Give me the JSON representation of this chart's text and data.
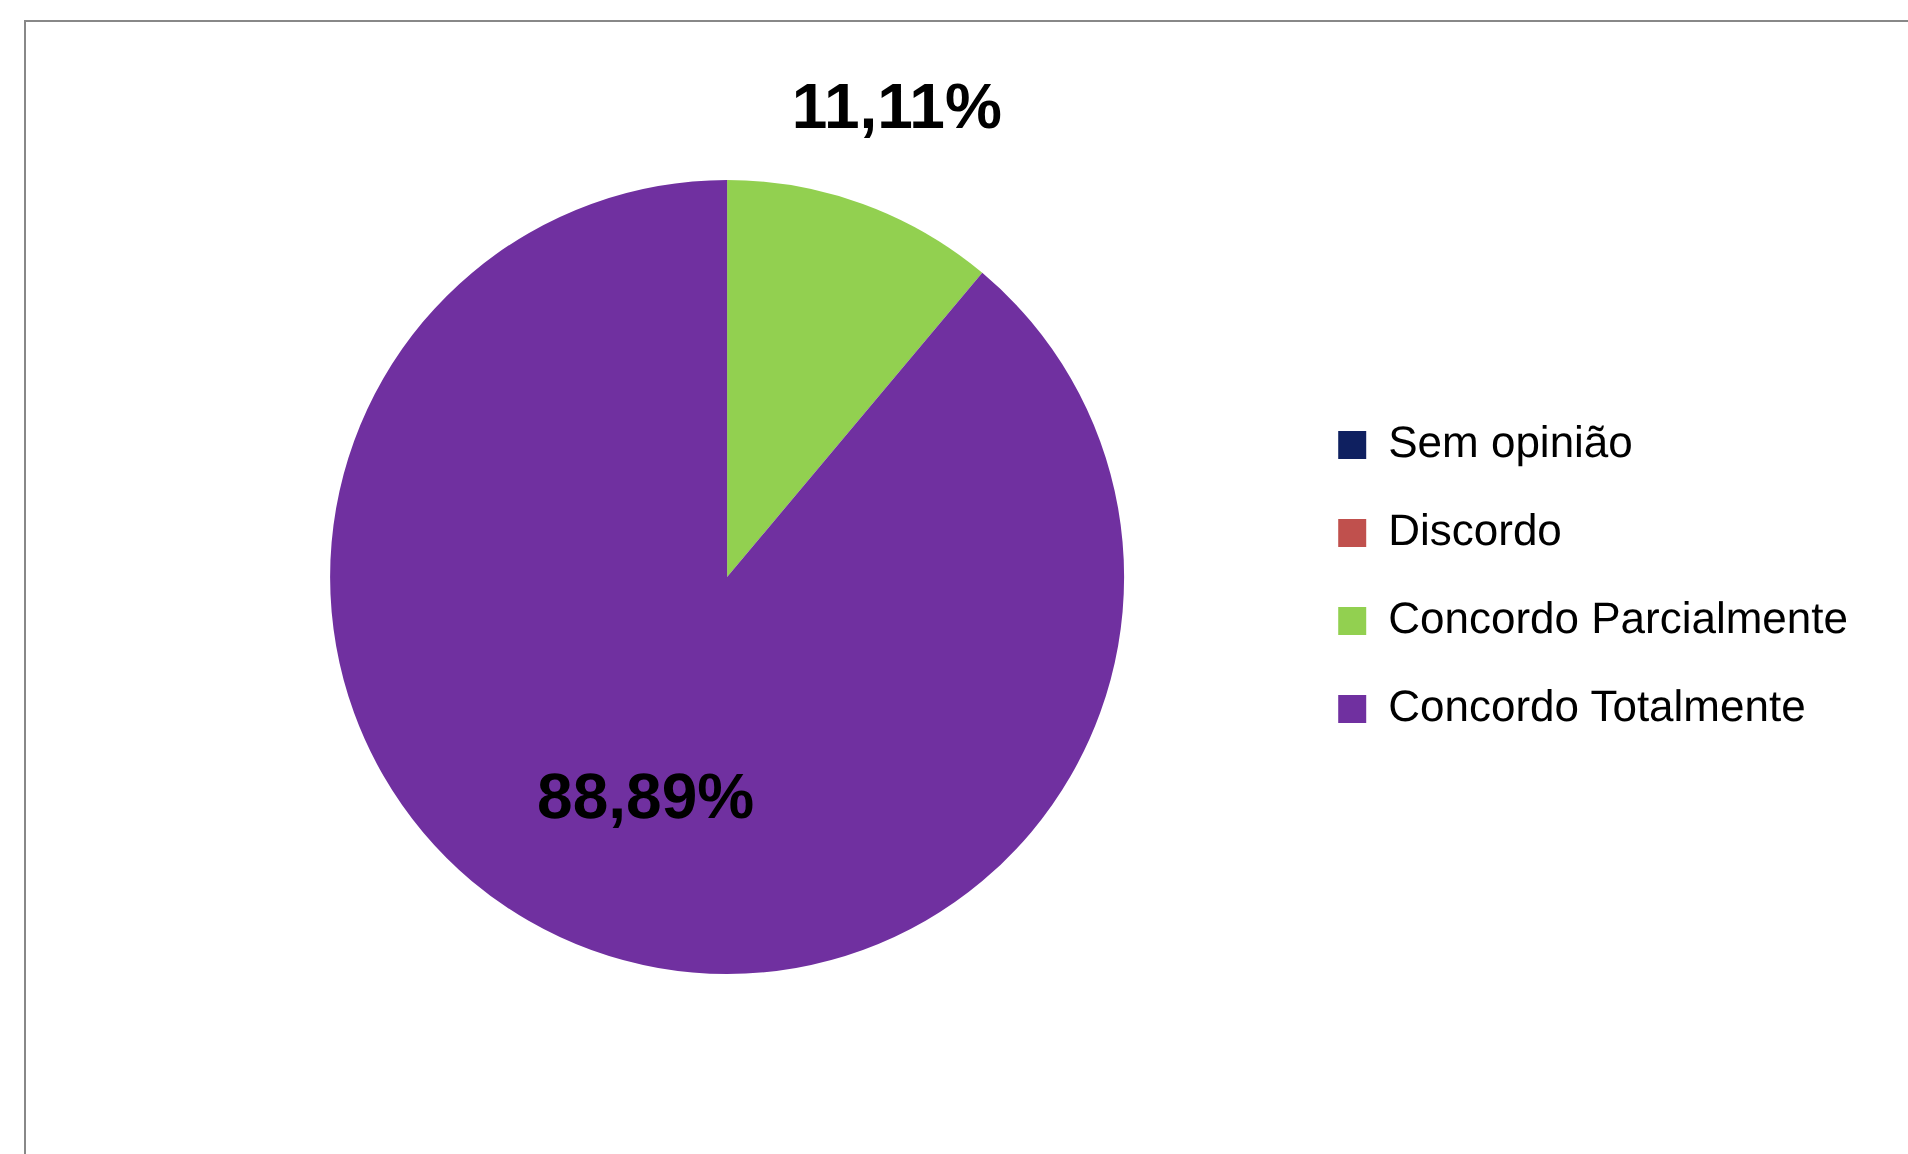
{
  "chart_data": {
    "type": "pie",
    "categories": [
      "Sem opinião",
      "Discordo",
      "Concordo Parcialmente",
      "Concordo Totalmente"
    ],
    "values": [
      0,
      0,
      11.11,
      88.89
    ],
    "colors": [
      "#0f2060",
      "#c0504d",
      "#92d050",
      "#7030a0"
    ],
    "value_labels": [
      null,
      null,
      "11,11%",
      "88,89%"
    ],
    "legend": "right"
  }
}
